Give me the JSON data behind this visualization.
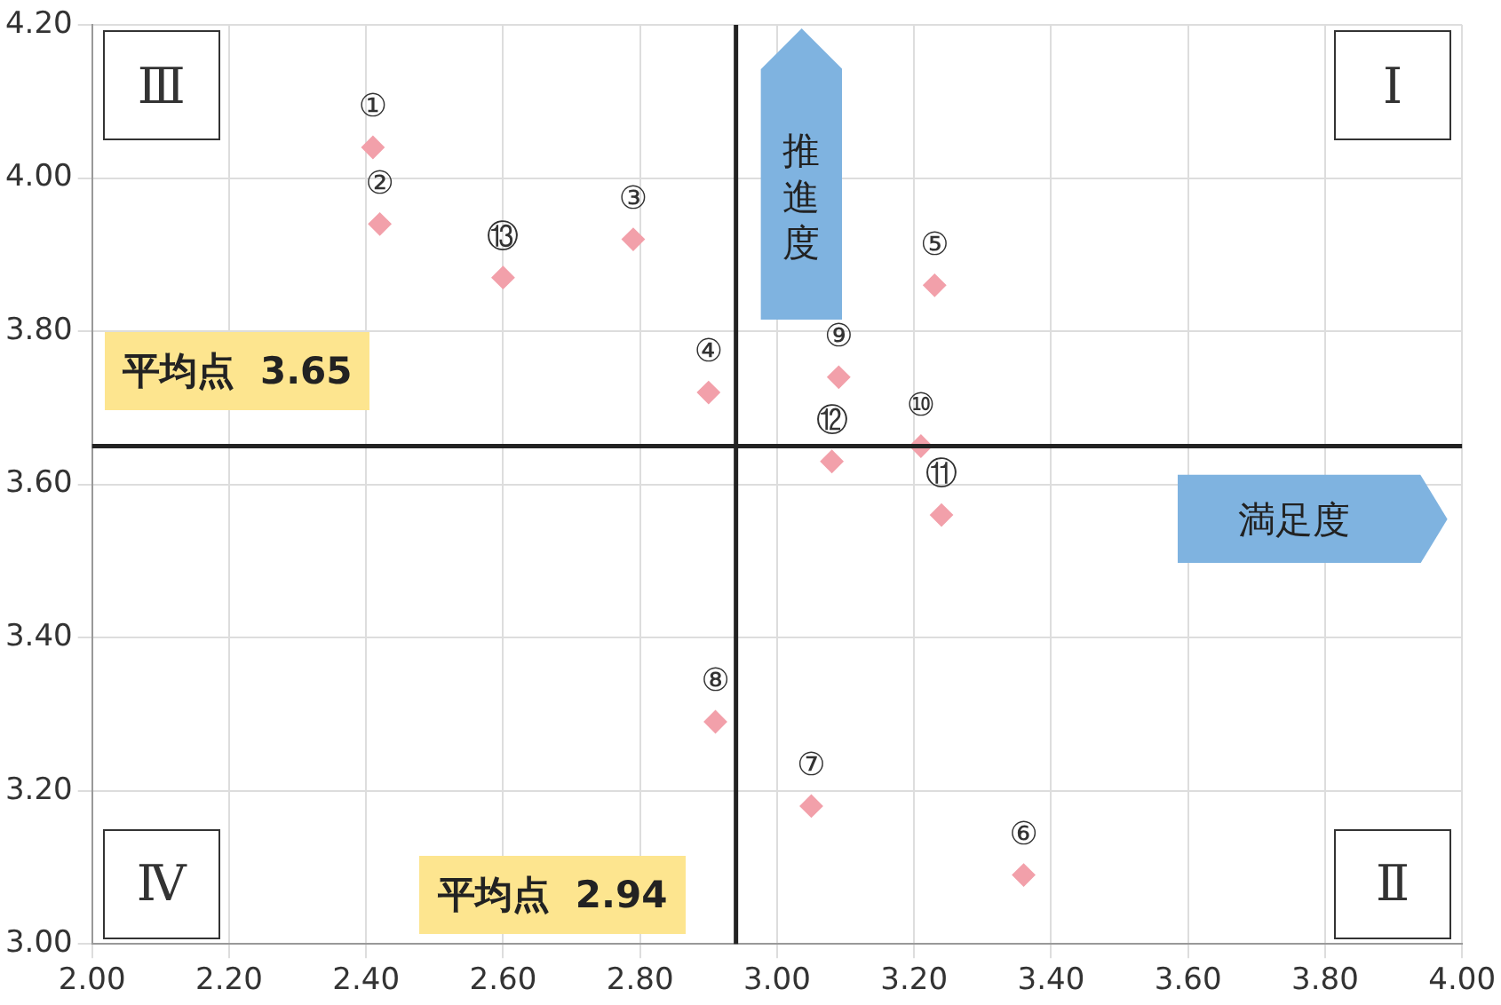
{
  "chart_data": {
    "type": "scatter",
    "xlabel": "満足度",
    "ylabel": "推進度",
    "xlim": [
      2,
      4
    ],
    "xticks": [
      {
        "value": 2,
        "label": "2.00"
      },
      {
        "value": 2.2,
        "label": "2.20"
      },
      {
        "value": 2.4,
        "label": "2.40"
      },
      {
        "value": 2.6,
        "label": "2.60"
      },
      {
        "value": 2.8,
        "label": "2.80"
      },
      {
        "value": 3,
        "label": "3.00"
      },
      {
        "value": 3.2,
        "label": "3.20"
      },
      {
        "value": 3.4,
        "label": "3.40"
      },
      {
        "value": 3.6,
        "label": "3.60"
      },
      {
        "value": 3.8,
        "label": "3.80"
      },
      {
        "value": 4,
        "label": "4.00"
      }
    ],
    "ylim": [
      3,
      4.2
    ],
    "yticks": [
      {
        "value": 3,
        "label": "3.00"
      },
      {
        "value": 3.2,
        "label": "3.20"
      },
      {
        "value": 3.4,
        "label": "3.40"
      },
      {
        "value": 3.6,
        "label": "3.60"
      },
      {
        "value": 3.8,
        "label": "3.80"
      },
      {
        "value": 4,
        "label": "4.00"
      },
      {
        "value": 4.2,
        "label": "4.20"
      }
    ],
    "grid": true,
    "marker": "diamond",
    "series": [
      {
        "color": "#f2a0aa",
        "x": [
          2.41,
          2.42,
          2.79,
          2.9,
          3.23,
          3.36,
          3.05,
          2.91,
          3.09,
          3.21,
          3.24,
          3.08,
          2.6
        ],
        "values": [
          4.04,
          3.94,
          3.92,
          3.72,
          3.86,
          3.09,
          3.18,
          3.29,
          3.74,
          3.65,
          3.56,
          3.63,
          3.87
        ]
      }
    ],
    "ref_lines": [
      {
        "axis": "y",
        "value": 3.65,
        "label": "平均点  3.65",
        "color": "#222222"
      },
      {
        "axis": "x",
        "value": 2.94,
        "label": "平均点  2.94",
        "color": "#222222"
      }
    ],
    "annotations": [
      "Ⅲ",
      "Ⅰ",
      "Ⅳ",
      "Ⅱ",
      {
        "text": "①",
        "x": 2.41,
        "y": 4.04
      },
      {
        "text": "②",
        "x": 2.42,
        "y": 3.94
      },
      {
        "text": "③",
        "x": 2.79,
        "y": 3.92
      },
      {
        "text": "④",
        "x": 2.9,
        "y": 3.72
      },
      {
        "text": "⑤",
        "x": 3.23,
        "y": 3.86
      },
      {
        "text": "⑥",
        "x": 3.36,
        "y": 3.09
      },
      {
        "text": "⑦",
        "x": 3.05,
        "y": 3.18
      },
      {
        "text": "⑧",
        "x": 2.91,
        "y": 3.29
      },
      {
        "text": "⑨",
        "x": 3.09,
        "y": 3.74
      },
      {
        "text": "⑩",
        "x": 3.21,
        "y": 3.65
      },
      {
        "text": "⑪",
        "x": 3.24,
        "y": 3.56
      },
      {
        "text": "⑫",
        "x": 3.08,
        "y": 3.63
      },
      {
        "text": "⑬",
        "x": 2.6,
        "y": 3.87
      }
    ]
  }
}
